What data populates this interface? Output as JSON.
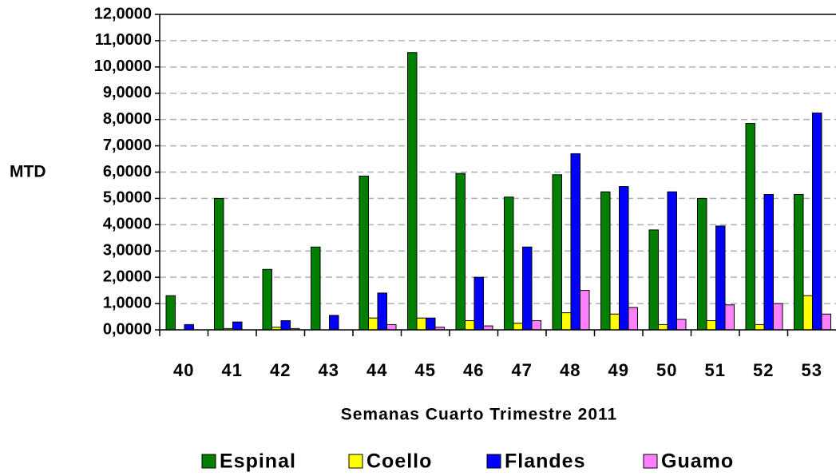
{
  "chart_data": {
    "type": "bar",
    "x_label": "Semanas Cuarto Trimestre 2011",
    "y_label": "MTD",
    "categories": [
      "40",
      "41",
      "42",
      "43",
      "44",
      "45",
      "46",
      "47",
      "48",
      "49",
      "50",
      "51",
      "52",
      "53"
    ],
    "series": [
      {
        "name": "Espinal",
        "color": "#007f00",
        "values": [
          1.3,
          5.0,
          2.3,
          3.15,
          5.85,
          10.55,
          5.95,
          5.05,
          5.9,
          5.25,
          3.8,
          5.0,
          7.85,
          5.15
        ]
      },
      {
        "name": "Coello",
        "color": "#ffff00",
        "values": [
          0,
          0.05,
          0.1,
          0,
          0.45,
          0.45,
          0.35,
          0.25,
          0.65,
          0.6,
          0.2,
          0.35,
          0.2,
          1.3
        ]
      },
      {
        "name": "Flandes",
        "color": "#0000ff",
        "values": [
          0.2,
          0.3,
          0.35,
          0.55,
          1.4,
          0.45,
          2.0,
          3.15,
          6.7,
          5.45,
          5.25,
          3.95,
          5.15,
          8.25
        ]
      },
      {
        "name": "Guamo",
        "color": "#ff80ff",
        "values": [
          0,
          0,
          0.05,
          0,
          0.2,
          0.1,
          0.15,
          0.35,
          1.5,
          0.85,
          0.4,
          0.95,
          1.0,
          0.6
        ]
      }
    ],
    "ylim": [
      0,
      12
    ],
    "yticks": [
      {
        "value": 0,
        "label": "0,0000"
      },
      {
        "value": 1,
        "label": "1,0000"
      },
      {
        "value": 2,
        "label": "2,0000"
      },
      {
        "value": 3,
        "label": "3,0000"
      },
      {
        "value": 4,
        "label": "4,0000"
      },
      {
        "value": 5,
        "label": "5,0000"
      },
      {
        "value": 6,
        "label": "6,0000"
      },
      {
        "value": 7,
        "label": "7,0000"
      },
      {
        "value": 8,
        "label": "8,0000"
      },
      {
        "value": 9,
        "label": "9,0000"
      },
      {
        "value": 10,
        "label": "10,0000"
      },
      {
        "value": 11,
        "label": "11,0000"
      },
      {
        "value": 12,
        "label": "12,0000"
      }
    ],
    "grid": true
  }
}
